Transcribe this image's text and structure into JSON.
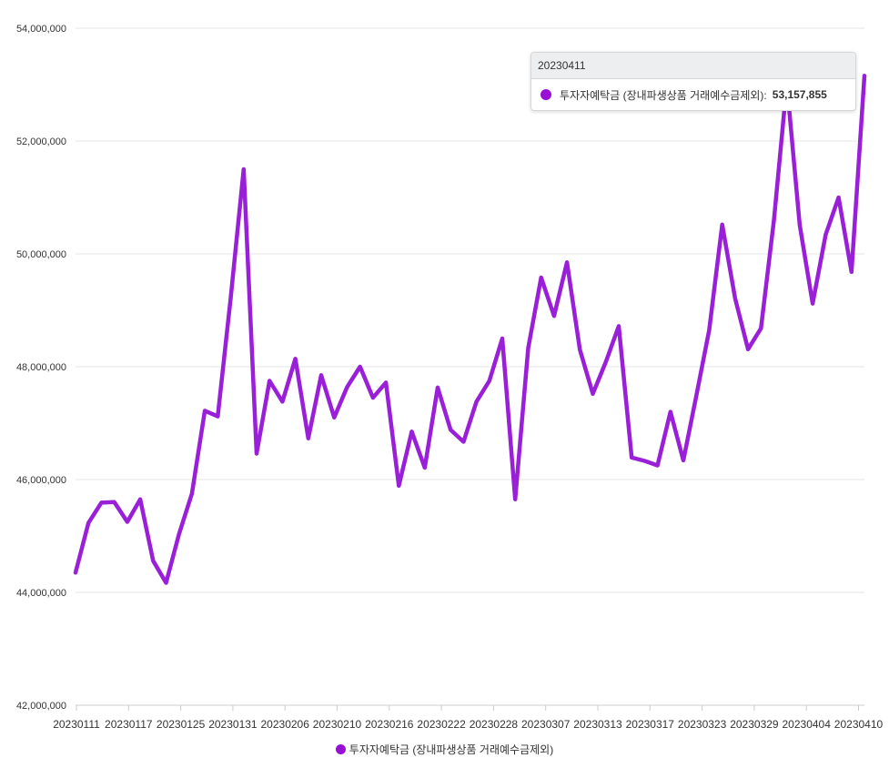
{
  "chart_data": {
    "type": "line",
    "title": "",
    "xlabel": "",
    "ylabel": "",
    "ylim": [
      42000000,
      54000000
    ],
    "y_ticks": [
      "42,000,000",
      "44,000,000",
      "46,000,000",
      "48,000,000",
      "50,000,000",
      "52,000,000",
      "54,000,000"
    ],
    "y_tick_values": [
      42000000,
      44000000,
      46000000,
      48000000,
      50000000,
      52000000,
      54000000
    ],
    "x_tick_labels": [
      "20230111",
      "20230117",
      "20230125",
      "20230131",
      "20230206",
      "20230210",
      "20230216",
      "20230222",
      "20230228",
      "20230307",
      "20230313",
      "20230317",
      "20230323",
      "20230329",
      "20230404",
      "20230410"
    ],
    "grid": true,
    "series": [
      {
        "name": "투자자예탁금 (장내파생상품 거래예수금제외)",
        "color": "#9a1fd8",
        "values": [
          44350000,
          45230000,
          45590000,
          45600000,
          45250000,
          45650000,
          44560000,
          44170000,
          45030000,
          45750000,
          47220000,
          47120000,
          49230000,
          51500000,
          46460000,
          47750000,
          47380000,
          48140000,
          46730000,
          47850000,
          47100000,
          47640000,
          48000000,
          47450000,
          47720000,
          45890000,
          46850000,
          46210000,
          47630000,
          46880000,
          46670000,
          47380000,
          47750000,
          48500000,
          45650000,
          48330000,
          49580000,
          48900000,
          49850000,
          48300000,
          47520000,
          48080000,
          48720000,
          46390000,
          46330000,
          46250000,
          47200000,
          46340000,
          47480000,
          48650000,
          50520000,
          49210000,
          48310000,
          48680000,
          50590000,
          53020000,
          50510000,
          49120000,
          50340000,
          51000000,
          49680000,
          53157855
        ]
      }
    ],
    "tooltip": {
      "header": "20230411",
      "label": "투자자예탁금 (장내파생상품 거래예수금제외):",
      "value": "53,157,855"
    },
    "legend": {
      "label": "투자자예탁금 (장내파생상품 거래예수금제외)",
      "position": "bottom-center"
    }
  }
}
